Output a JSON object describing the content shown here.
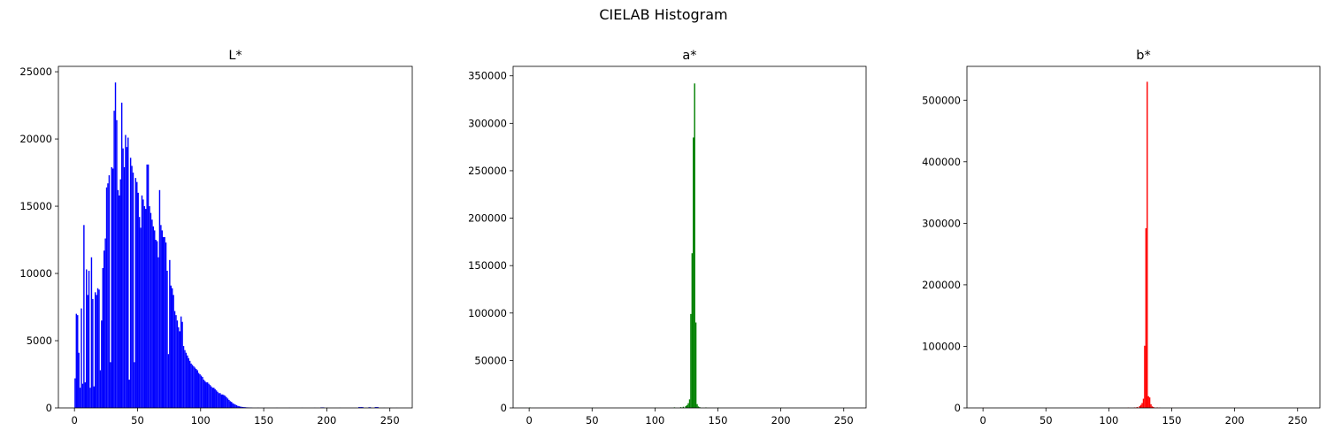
{
  "figure": {
    "title": "CIELAB Histogram"
  },
  "chart_data": [
    {
      "type": "bar",
      "title": "L*",
      "color": "#0000ff",
      "xlim": [
        -12.75,
        267.75
      ],
      "ylim": [
        0,
        25400
      ],
      "xticks": [
        0,
        50,
        100,
        150,
        200,
        250
      ],
      "yticks": [
        0,
        5000,
        10000,
        15000,
        20000,
        25000
      ],
      "bins": [
        [
          0,
          2200
        ],
        [
          1,
          7000
        ],
        [
          2,
          6900
        ],
        [
          3,
          4100
        ],
        [
          4,
          1500
        ],
        [
          5,
          7400
        ],
        [
          6,
          1800
        ],
        [
          7,
          13600
        ],
        [
          8,
          1900
        ],
        [
          9,
          10300
        ],
        [
          10,
          8400
        ],
        [
          11,
          10200
        ],
        [
          12,
          1500
        ],
        [
          13,
          11200
        ],
        [
          14,
          8100
        ],
        [
          15,
          1600
        ],
        [
          16,
          8600
        ],
        [
          17,
          8400
        ],
        [
          18,
          8900
        ],
        [
          19,
          8800
        ],
        [
          20,
          2800
        ],
        [
          21,
          6500
        ],
        [
          22,
          10400
        ],
        [
          23,
          11700
        ],
        [
          24,
          12600
        ],
        [
          25,
          16400
        ],
        [
          26,
          16700
        ],
        [
          27,
          17300
        ],
        [
          28,
          3400
        ],
        [
          29,
          17900
        ],
        [
          30,
          17800
        ],
        [
          31,
          22100
        ],
        [
          32,
          24200
        ],
        [
          33,
          21400
        ],
        [
          34,
          16200
        ],
        [
          35,
          15800
        ],
        [
          36,
          17000
        ],
        [
          37,
          22700
        ],
        [
          38,
          19300
        ],
        [
          39,
          17900
        ],
        [
          40,
          20300
        ],
        [
          41,
          19400
        ],
        [
          42,
          20100
        ],
        [
          43,
          2100
        ],
        [
          44,
          18600
        ],
        [
          45,
          18000
        ],
        [
          46,
          17500
        ],
        [
          47,
          3400
        ],
        [
          48,
          17100
        ],
        [
          49,
          16800
        ],
        [
          50,
          16000
        ],
        [
          51,
          14200
        ],
        [
          52,
          13400
        ],
        [
          53,
          15800
        ],
        [
          54,
          15500
        ],
        [
          55,
          15000
        ],
        [
          56,
          14800
        ],
        [
          57,
          18100
        ],
        [
          58,
          18100
        ],
        [
          59,
          15000
        ],
        [
          60,
          14500
        ],
        [
          61,
          14000
        ],
        [
          62,
          13500
        ],
        [
          63,
          13200
        ],
        [
          64,
          12500
        ],
        [
          65,
          12400
        ],
        [
          66,
          11200
        ],
        [
          67,
          16200
        ],
        [
          68,
          13600
        ],
        [
          69,
          13200
        ],
        [
          70,
          12700
        ],
        [
          71,
          12700
        ],
        [
          72,
          12300
        ],
        [
          73,
          10200
        ],
        [
          74,
          4000
        ],
        [
          75,
          11000
        ],
        [
          76,
          9100
        ],
        [
          77,
          8900
        ],
        [
          78,
          8400
        ],
        [
          79,
          7200
        ],
        [
          80,
          6900
        ],
        [
          81,
          6500
        ],
        [
          82,
          6000
        ],
        [
          83,
          5700
        ],
        [
          84,
          6800
        ],
        [
          85,
          6400
        ],
        [
          86,
          4600
        ],
        [
          87,
          4300
        ],
        [
          88,
          4100
        ],
        [
          89,
          3900
        ],
        [
          90,
          3700
        ],
        [
          91,
          3500
        ],
        [
          92,
          3300
        ],
        [
          93,
          3200
        ],
        [
          94,
          3100
        ],
        [
          95,
          3000
        ],
        [
          96,
          2900
        ],
        [
          97,
          2800
        ],
        [
          98,
          2600
        ],
        [
          99,
          2500
        ],
        [
          100,
          2400
        ],
        [
          101,
          2300
        ],
        [
          102,
          2100
        ],
        [
          103,
          2000
        ],
        [
          104,
          1900
        ],
        [
          105,
          1900
        ],
        [
          106,
          1800
        ],
        [
          107,
          1700
        ],
        [
          108,
          1600
        ],
        [
          109,
          1500
        ],
        [
          110,
          1500
        ],
        [
          111,
          1400
        ],
        [
          112,
          1300
        ],
        [
          113,
          1200
        ],
        [
          114,
          1100
        ],
        [
          115,
          1100
        ],
        [
          116,
          1000
        ],
        [
          117,
          1000
        ],
        [
          118,
          950
        ],
        [
          119,
          900
        ],
        [
          120,
          800
        ],
        [
          121,
          700
        ],
        [
          122,
          600
        ],
        [
          123,
          500
        ],
        [
          124,
          450
        ],
        [
          125,
          350
        ],
        [
          126,
          300
        ],
        [
          127,
          250
        ],
        [
          128,
          200
        ],
        [
          129,
          150
        ],
        [
          130,
          120
        ],
        [
          131,
          100
        ],
        [
          132,
          80
        ],
        [
          133,
          70
        ],
        [
          134,
          60
        ],
        [
          135,
          50
        ],
        [
          136,
          40
        ],
        [
          137,
          35
        ],
        [
          138,
          30
        ],
        [
          139,
          25
        ],
        [
          140,
          20
        ],
        [
          145,
          15
        ],
        [
          150,
          12
        ],
        [
          160,
          10
        ],
        [
          170,
          10
        ],
        [
          180,
          10
        ],
        [
          190,
          10
        ],
        [
          195,
          40
        ],
        [
          196,
          40
        ],
        [
          197,
          40
        ],
        [
          200,
          10
        ],
        [
          210,
          10
        ],
        [
          225,
          60
        ],
        [
          226,
          60
        ],
        [
          227,
          60
        ],
        [
          228,
          60
        ],
        [
          233,
          50
        ],
        [
          234,
          50
        ],
        [
          238,
          60
        ],
        [
          239,
          60
        ],
        [
          240,
          60
        ],
        [
          245,
          10
        ],
        [
          250,
          10
        ],
        [
          255,
          8
        ]
      ]
    },
    {
      "type": "bar",
      "title": "a*",
      "color": "#008000",
      "xlim": [
        -12.75,
        267.75
      ],
      "ylim": [
        0,
        360000
      ],
      "xticks": [
        0,
        50,
        100,
        150,
        200,
        250
      ],
      "yticks": [
        0,
        50000,
        100000,
        150000,
        200000,
        250000,
        300000,
        350000
      ],
      "bins": [
        [
          0,
          500
        ],
        [
          50,
          300
        ],
        [
          100,
          400
        ],
        [
          115,
          600
        ],
        [
          120,
          800
        ],
        [
          122,
          1200
        ],
        [
          124,
          2000
        ],
        [
          125,
          3000
        ],
        [
          126,
          5000
        ],
        [
          127,
          9000
        ],
        [
          128,
          99000
        ],
        [
          129,
          163000
        ],
        [
          130,
          285000
        ],
        [
          131,
          342000
        ],
        [
          132,
          90000
        ],
        [
          133,
          4000
        ],
        [
          134,
          1500
        ],
        [
          135,
          800
        ],
        [
          140,
          500
        ],
        [
          150,
          400
        ],
        [
          200,
          200
        ],
        [
          250,
          100
        ]
      ]
    },
    {
      "type": "bar",
      "title": "b*",
      "color": "#ff0000",
      "xlim": [
        -12.75,
        267.75
      ],
      "ylim": [
        0,
        555000
      ],
      "xticks": [
        0,
        50,
        100,
        150,
        200,
        250
      ],
      "yticks": [
        0,
        100000,
        200000,
        300000,
        400000,
        500000
      ],
      "bins": [
        [
          0,
          500
        ],
        [
          50,
          300
        ],
        [
          100,
          400
        ],
        [
          115,
          600
        ],
        [
          120,
          800
        ],
        [
          122,
          1500
        ],
        [
          124,
          3000
        ],
        [
          125,
          5000
        ],
        [
          126,
          8000
        ],
        [
          127,
          15000
        ],
        [
          128,
          101000
        ],
        [
          129,
          292000
        ],
        [
          130,
          530000
        ],
        [
          131,
          19000
        ],
        [
          132,
          17000
        ],
        [
          133,
          6000
        ],
        [
          134,
          2500
        ],
        [
          135,
          1500
        ],
        [
          138,
          800
        ],
        [
          140,
          500
        ],
        [
          150,
          300
        ],
        [
          200,
          200
        ],
        [
          250,
          100
        ]
      ]
    }
  ]
}
